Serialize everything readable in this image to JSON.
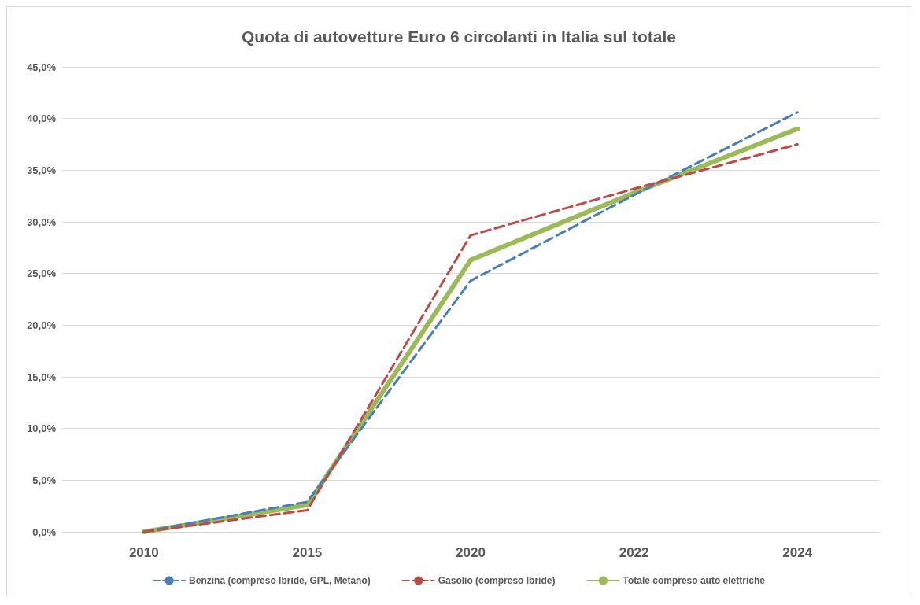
{
  "chart_data": {
    "type": "line",
    "title": "Quota di autovetture Euro 6 circolanti in Italia sul totale",
    "categories": [
      "2010",
      "2015",
      "2020",
      "2022",
      "2024"
    ],
    "series": [
      {
        "name": "Benzina (compreso Ibride, GPL, Metano)",
        "color": "#4a7ebb",
        "line_style": "dashed",
        "values": [
          0,
          2.9,
          24.3,
          32.6,
          40.6
        ]
      },
      {
        "name": "Gasolio (compreso Ibride)",
        "color": "#be4b48",
        "line_style": "dashed",
        "values": [
          0,
          2.1,
          28.7,
          33.2,
          37.5
        ]
      },
      {
        "name": "Totale compreso auto elettriche",
        "color": "#9bbb59",
        "line_style": "solid",
        "values": [
          0,
          2.6,
          26.3,
          32.8,
          39.0
        ]
      }
    ],
    "ylim": [
      0,
      45
    ],
    "yticks": [
      {
        "value": 0,
        "label": "0,0%"
      },
      {
        "value": 5,
        "label": "5,0%"
      },
      {
        "value": 10,
        "label": "10,0%"
      },
      {
        "value": 15,
        "label": "15,0%"
      },
      {
        "value": 20,
        "label": "20,0%"
      },
      {
        "value": 25,
        "label": "25,0%"
      },
      {
        "value": 30,
        "label": "30,0%"
      },
      {
        "value": 35,
        "label": "35,0%"
      },
      {
        "value": 40,
        "label": "40,0%"
      },
      {
        "value": 45,
        "label": "45,0%"
      }
    ],
    "grid": "y",
    "legend": "bottom",
    "marker": "none"
  }
}
